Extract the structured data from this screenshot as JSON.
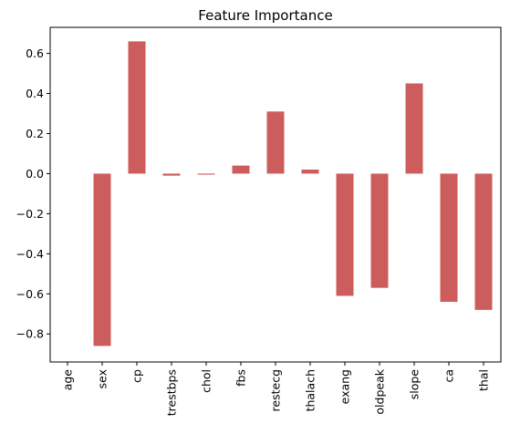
{
  "chart_data": {
    "type": "bar",
    "title": "Feature Importance",
    "xlabel": "",
    "ylabel": "",
    "categories": [
      "age",
      "sex",
      "cp",
      "trestbps",
      "chol",
      "fbs",
      "restecg",
      "thalach",
      "exang",
      "oldpeak",
      "slope",
      "ca",
      "thal"
    ],
    "values": [
      0.0,
      -0.86,
      0.66,
      -0.01,
      -0.005,
      0.04,
      0.31,
      0.02,
      -0.61,
      -0.57,
      0.45,
      -0.64,
      -0.68
    ],
    "ylim": [
      -0.94,
      0.73
    ],
    "yticks": [
      -0.8,
      -0.6,
      -0.4,
      -0.2,
      0.0,
      0.2,
      0.4,
      0.6
    ],
    "ytick_labels": [
      "−0.8",
      "−0.6",
      "−0.4",
      "−0.2",
      "0.0",
      "0.2",
      "0.4",
      "0.6"
    ],
    "bar_color": "#cd5c5c",
    "grid": false,
    "legend": "none"
  }
}
